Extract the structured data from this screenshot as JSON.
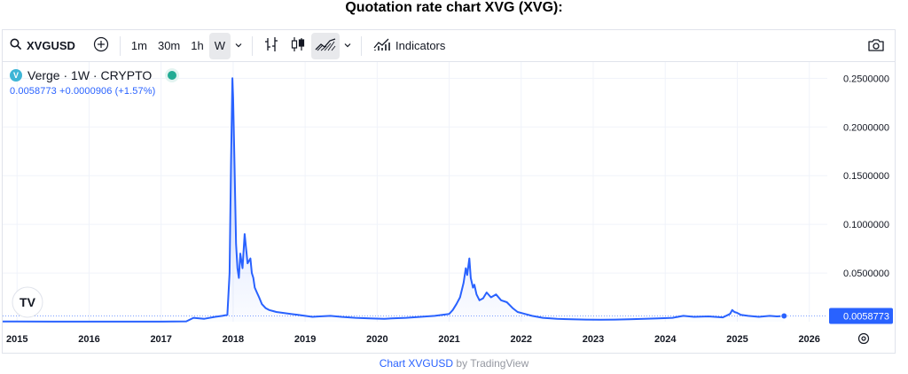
{
  "page": {
    "title": "Quotation rate chart XVG (XVG):"
  },
  "toolbar": {
    "symbol": "XVGUSD",
    "intervals": [
      "1m",
      "30m",
      "1h",
      "W"
    ],
    "active_interval": "W",
    "indicators_label": "Indicators",
    "icons": [
      "search-icon",
      "add-compare-icon",
      "chevron-down-icon",
      "bar-style-icon",
      "candle-style-icon",
      "area-style-icon",
      "chevron-down-icon",
      "indicators-icon",
      "camera-icon"
    ]
  },
  "legend": {
    "logo_glyph": "V",
    "title": "Verge · 1W · CRYPTO",
    "value_line": "0.0058773  +0.0000906 (+1.57%)",
    "live_color": "#22ab94"
  },
  "price_axis": {
    "labels": [
      "0.2500000",
      "0.2000000",
      "0.1500000",
      "0.1000000",
      "0.0500000"
    ],
    "last_price_label": "0.0058773",
    "last_price_color": "#2962ff"
  },
  "time_axis": {
    "labels": [
      "2015",
      "2016",
      "2017",
      "2018",
      "2019",
      "2020",
      "2021",
      "2022",
      "2023",
      "2024",
      "2025",
      "2026"
    ]
  },
  "watermark": {
    "text": "TV"
  },
  "footer": {
    "link_text": "Chart XVGUSD",
    "suffix": " by TradingView"
  },
  "chart_data": {
    "type": "area",
    "title": "Verge · 1W · CRYPTO",
    "series": [
      {
        "name": "XVGUSD",
        "color": "#2962ff",
        "x": [
          2014.8,
          2015.0,
          2015.5,
          2016.0,
          2016.5,
          2017.0,
          2017.35,
          2017.45,
          2017.6,
          2017.75,
          2017.85,
          2017.92,
          2017.95,
          2017.97,
          2017.99,
          2018.0,
          2018.02,
          2018.04,
          2018.06,
          2018.08,
          2018.1,
          2018.13,
          2018.16,
          2018.2,
          2018.24,
          2018.26,
          2018.28,
          2018.3,
          2018.33,
          2018.36,
          2018.4,
          2018.45,
          2018.5,
          2018.55,
          2018.6,
          2018.7,
          2018.8,
          2018.9,
          2019.0,
          2019.1,
          2019.2,
          2019.35,
          2019.5,
          2019.7,
          2019.9,
          2020.1,
          2020.2,
          2020.4,
          2020.6,
          2020.8,
          2021.0,
          2021.05,
          2021.1,
          2021.15,
          2021.2,
          2021.23,
          2021.25,
          2021.28,
          2021.3,
          2021.33,
          2021.35,
          2021.38,
          2021.42,
          2021.47,
          2021.52,
          2021.58,
          2021.65,
          2021.72,
          2021.8,
          2021.88,
          2021.95,
          2022.05,
          2022.15,
          2022.3,
          2022.5,
          2022.7,
          2022.9,
          2023.1,
          2023.3,
          2023.5,
          2023.7,
          2023.9,
          2024.1,
          2024.25,
          2024.4,
          2024.6,
          2024.8,
          2024.9,
          2024.93,
          2024.96,
          2025.0,
          2025.05,
          2025.15,
          2025.3,
          2025.45,
          2025.55,
          2025.65
        ],
        "values": [
          0.0002,
          0.0002,
          0.0001,
          0.0001,
          0.0001,
          0.0001,
          0.0004,
          0.004,
          0.003,
          0.005,
          0.006,
          0.007,
          0.05,
          0.16,
          0.25,
          0.23,
          0.16,
          0.08,
          0.055,
          0.045,
          0.07,
          0.055,
          0.09,
          0.06,
          0.065,
          0.05,
          0.045,
          0.035,
          0.03,
          0.025,
          0.018,
          0.014,
          0.012,
          0.011,
          0.01,
          0.009,
          0.008,
          0.007,
          0.006,
          0.005,
          0.0055,
          0.006,
          0.005,
          0.004,
          0.0035,
          0.003,
          0.0035,
          0.004,
          0.005,
          0.006,
          0.008,
          0.012,
          0.018,
          0.025,
          0.04,
          0.055,
          0.048,
          0.065,
          0.045,
          0.035,
          0.038,
          0.028,
          0.022,
          0.024,
          0.03,
          0.025,
          0.028,
          0.022,
          0.02,
          0.014,
          0.01,
          0.008,
          0.006,
          0.004,
          0.003,
          0.0025,
          0.0022,
          0.002,
          0.0022,
          0.0025,
          0.003,
          0.0035,
          0.004,
          0.006,
          0.005,
          0.0055,
          0.0045,
          0.008,
          0.012,
          0.01,
          0.009,
          0.007,
          0.006,
          0.005,
          0.006,
          0.0055,
          0.0058773
        ]
      }
    ],
    "last_value": 0.0058773,
    "change": 9.06e-05,
    "change_percent": 1.57,
    "xlim": [
      2014.8,
      2026.25
    ],
    "ylim": [
      0,
      0.2667
    ],
    "yticks": [
      0.05,
      0.1,
      0.15,
      0.2,
      0.25
    ],
    "xticks": [
      2015,
      2016,
      2017,
      2018,
      2019,
      2020,
      2021,
      2022,
      2023,
      2024,
      2025,
      2026
    ],
    "grid": true,
    "legend": "top-left"
  }
}
